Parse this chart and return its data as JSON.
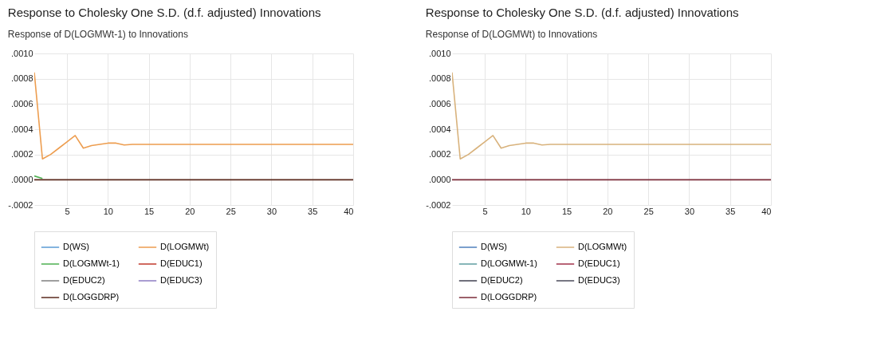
{
  "chart_data": [
    {
      "type": "line",
      "title": "Response to Cholesky One S.D. (d.f. adjusted) Innovations",
      "subtitle": "Response of D(LOGMWt-1) to Innovations",
      "x": [
        1,
        2,
        3,
        4,
        5,
        6,
        7,
        8,
        9,
        10,
        11,
        12,
        13,
        14,
        15,
        16,
        17,
        18,
        19,
        20,
        21,
        22,
        23,
        24,
        25,
        26,
        27,
        28,
        29,
        30,
        31,
        32,
        33,
        34,
        35,
        36,
        37,
        38,
        39,
        40
      ],
      "series": [
        {
          "name": "D(WS)",
          "color": "#5b9bd5",
          "values": [
            null,
            null,
            null,
            null,
            null,
            null,
            null,
            null,
            null,
            null,
            null,
            null,
            null,
            null,
            null,
            null,
            null,
            null,
            null,
            null,
            null,
            null,
            null,
            null,
            null,
            null,
            null,
            null,
            null,
            null,
            null,
            null,
            null,
            null,
            null,
            null,
            null,
            null,
            null,
            null
          ]
        },
        {
          "name": "D(LOGMWt)",
          "color": "#ed9d4f",
          "values": [
            0.00085,
            0.000165,
            0.0002,
            0.00025,
            0.0003,
            0.00035,
            0.00025,
            0.00027,
            0.00028,
            0.00029,
            0.00029,
            0.000275,
            0.00028,
            0.00028,
            0.00028,
            0.00028,
            0.00028,
            0.00028,
            0.00028,
            0.00028,
            0.00028,
            0.00028,
            0.00028,
            0.00028,
            0.00028,
            0.00028,
            0.00028,
            0.00028,
            0.00028,
            0.00028,
            0.00028,
            0.00028,
            0.00028,
            0.00028,
            0.00028,
            0.00028,
            0.00028,
            0.00028,
            0.00028,
            0.00028
          ]
        },
        {
          "name": "D(LOGMWt-1)",
          "color": "#4caf50",
          "values": [
            3e-05,
            1e-05,
            null,
            null,
            null,
            null,
            null,
            null,
            null,
            null,
            null,
            null,
            null,
            null,
            null,
            null,
            null,
            null,
            null,
            null,
            null,
            null,
            null,
            null,
            null,
            null,
            null,
            null,
            null,
            null,
            null,
            null,
            null,
            null,
            null,
            null,
            null,
            null,
            null,
            null
          ]
        },
        {
          "name": "D(EDUC1)",
          "color": "#c0392b",
          "values": [
            null,
            null,
            null,
            null,
            null,
            null,
            null,
            null,
            null,
            null,
            null,
            null,
            null,
            null,
            null,
            null,
            null,
            null,
            null,
            null,
            null,
            null,
            null,
            null,
            null,
            null,
            null,
            null,
            null,
            null,
            null,
            null,
            null,
            null,
            null,
            null,
            null,
            null,
            null,
            null
          ]
        },
        {
          "name": "D(EDUC2)",
          "color": "#7f7f7f",
          "values": [
            null,
            null,
            null,
            null,
            null,
            null,
            null,
            null,
            null,
            null,
            null,
            null,
            null,
            null,
            null,
            null,
            null,
            null,
            null,
            null,
            null,
            null,
            null,
            null,
            null,
            null,
            null,
            null,
            null,
            null,
            null,
            null,
            null,
            null,
            null,
            null,
            null,
            null,
            null,
            null
          ]
        },
        {
          "name": "D(EDUC3)",
          "color": "#8e7cc3",
          "values": [
            null,
            null,
            null,
            null,
            null,
            null,
            null,
            null,
            null,
            null,
            null,
            null,
            null,
            null,
            null,
            null,
            null,
            null,
            null,
            null,
            null,
            null,
            null,
            null,
            null,
            null,
            null,
            null,
            null,
            null,
            null,
            null,
            null,
            null,
            null,
            null,
            null,
            null,
            null,
            null
          ]
        },
        {
          "name": "D(LOGGDRP)",
          "color": "#5a2a1e",
          "values": [
            0,
            0,
            0,
            0,
            0,
            0,
            0,
            0,
            0,
            0,
            0,
            0,
            0,
            0,
            0,
            0,
            0,
            0,
            0,
            0,
            0,
            0,
            0,
            0,
            0,
            0,
            0,
            0,
            0,
            0,
            0,
            0,
            0,
            0,
            0,
            0,
            0,
            0,
            0,
            0
          ]
        }
      ],
      "xlim": [
        1,
        40
      ],
      "xticks": [
        5,
        10,
        15,
        20,
        25,
        30,
        35,
        40
      ],
      "ylim": [
        -0.0002,
        0.001
      ],
      "yticks": [
        {
          "value": -0.0002,
          "label": "-.0002"
        },
        {
          "value": 0,
          "label": ".0000"
        },
        {
          "value": 0.0002,
          "label": ".0002"
        },
        {
          "value": 0.0004,
          "label": ".0004"
        },
        {
          "value": 0.0006,
          "label": ".0006"
        },
        {
          "value": 0.0008,
          "label": ".0008"
        },
        {
          "value": 0.001,
          "label": ".0010"
        }
      ],
      "grid": true,
      "legend": "bottom"
    },
    {
      "type": "line",
      "title": "Response to Cholesky One S.D. (d.f. adjusted) Innovations",
      "subtitle": "Response of D(LOGMWt) to Innovations",
      "x": [
        1,
        2,
        3,
        4,
        5,
        6,
        7,
        8,
        9,
        10,
        11,
        12,
        13,
        14,
        15,
        16,
        17,
        18,
        19,
        20,
        21,
        22,
        23,
        24,
        25,
        26,
        27,
        28,
        29,
        30,
        31,
        32,
        33,
        34,
        35,
        36,
        37,
        38,
        39,
        40
      ],
      "series": [
        {
          "name": "D(WS)",
          "color": "#4f81bd",
          "values": [
            null,
            null,
            null,
            null,
            null,
            null,
            null,
            null,
            null,
            null,
            null,
            null,
            null,
            null,
            null,
            null,
            null,
            null,
            null,
            null,
            null,
            null,
            null,
            null,
            null,
            null,
            null,
            null,
            null,
            null,
            null,
            null,
            null,
            null,
            null,
            null,
            null,
            null,
            null,
            null
          ]
        },
        {
          "name": "D(LOGMWt)",
          "color": "#d8b27c",
          "values": [
            0.00085,
            0.000165,
            0.0002,
            0.00025,
            0.0003,
            0.00035,
            0.00025,
            0.00027,
            0.00028,
            0.00029,
            0.00029,
            0.000275,
            0.00028,
            0.00028,
            0.00028,
            0.00028,
            0.00028,
            0.00028,
            0.00028,
            0.00028,
            0.00028,
            0.00028,
            0.00028,
            0.00028,
            0.00028,
            0.00028,
            0.00028,
            0.00028,
            0.00028,
            0.00028,
            0.00028,
            0.00028,
            0.00028,
            0.00028,
            0.00028,
            0.00028,
            0.00028,
            0.00028,
            0.00028,
            0.00028
          ]
        },
        {
          "name": "D(LOGMWt-1)",
          "color": "#5f9ea0",
          "values": [
            null,
            null,
            null,
            null,
            null,
            null,
            null,
            null,
            null,
            null,
            null,
            null,
            null,
            null,
            null,
            null,
            null,
            null,
            null,
            null,
            null,
            null,
            null,
            null,
            null,
            null,
            null,
            null,
            null,
            null,
            null,
            null,
            null,
            null,
            null,
            null,
            null,
            null,
            null,
            null
          ]
        },
        {
          "name": "D(EDUC1)",
          "color": "#a0304a",
          "values": [
            null,
            null,
            null,
            null,
            null,
            null,
            null,
            null,
            null,
            null,
            null,
            null,
            null,
            null,
            null,
            null,
            null,
            null,
            null,
            null,
            null,
            null,
            null,
            null,
            null,
            null,
            null,
            null,
            null,
            null,
            null,
            null,
            null,
            null,
            null,
            null,
            null,
            null,
            null,
            null
          ]
        },
        {
          "name": "D(EDUC2)",
          "color": "#3f3f4f",
          "values": [
            null,
            null,
            null,
            null,
            null,
            null,
            null,
            null,
            null,
            null,
            null,
            null,
            null,
            null,
            null,
            null,
            null,
            null,
            null,
            null,
            null,
            null,
            null,
            null,
            null,
            null,
            null,
            null,
            null,
            null,
            null,
            null,
            null,
            null,
            null,
            null,
            null,
            null,
            null,
            null
          ]
        },
        {
          "name": "D(EDUC3)",
          "color": "#4a4a5a",
          "values": [
            null,
            null,
            null,
            null,
            null,
            null,
            null,
            null,
            null,
            null,
            null,
            null,
            null,
            null,
            null,
            null,
            null,
            null,
            null,
            null,
            null,
            null,
            null,
            null,
            null,
            null,
            null,
            null,
            null,
            null,
            null,
            null,
            null,
            null,
            null,
            null,
            null,
            null,
            null,
            null
          ]
        },
        {
          "name": "D(LOGGDRP)",
          "color": "#7b2d3a",
          "values": [
            0,
            0,
            0,
            0,
            0,
            0,
            0,
            0,
            0,
            0,
            0,
            0,
            0,
            0,
            0,
            0,
            0,
            0,
            0,
            0,
            0,
            0,
            0,
            0,
            0,
            0,
            0,
            0,
            0,
            0,
            0,
            0,
            0,
            0,
            0,
            0,
            0,
            0,
            0,
            0
          ]
        }
      ],
      "xlim": [
        1,
        40
      ],
      "xticks": [
        5,
        10,
        15,
        20,
        25,
        30,
        35,
        40
      ],
      "ylim": [
        -0.0002,
        0.001
      ],
      "yticks": [
        {
          "value": -0.0002,
          "label": "-.0002"
        },
        {
          "value": 0,
          "label": ".0000"
        },
        {
          "value": 0.0002,
          "label": ".0002"
        },
        {
          "value": 0.0004,
          "label": ".0004"
        },
        {
          "value": 0.0006,
          "label": ".0006"
        },
        {
          "value": 0.0008,
          "label": ".0008"
        },
        {
          "value": 0.001,
          "label": ".0010"
        }
      ],
      "grid": true,
      "legend": "bottom"
    }
  ]
}
